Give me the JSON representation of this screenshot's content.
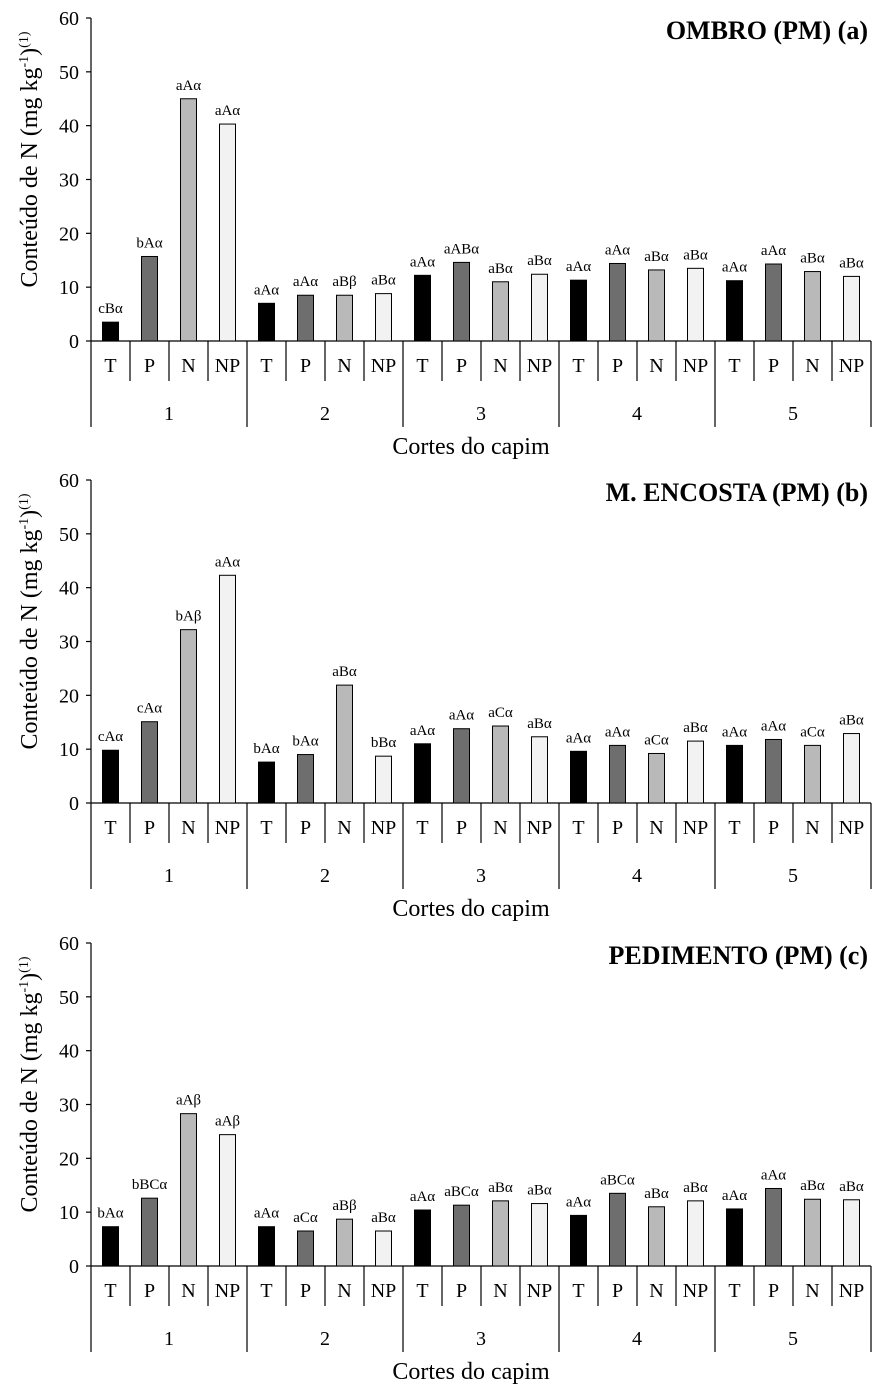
{
  "chart_data": [
    {
      "type": "bar",
      "title": "OMBRO (PM) (a)",
      "xlabel": "Cortes do capim",
      "ylabel": "Conteúdo de N (mg kg",
      "ylabel_sup1": "-1",
      "ylabel_mid": ")",
      "ylabel_sup2": "(1)",
      "ylim": [
        0,
        60
      ],
      "yticks": [
        "0",
        "10",
        "20",
        "30",
        "40",
        "50",
        "60"
      ],
      "groups": [
        "1",
        "2",
        "3",
        "4",
        "5"
      ],
      "categories": [
        "T",
        "P",
        "N",
        "NP"
      ],
      "colors": [
        "#000000",
        "#6e6e6e",
        "#b9b9b9",
        "#f2f2f2"
      ],
      "values": [
        [
          3.5,
          15.7,
          45.0,
          40.3
        ],
        [
          7.0,
          8.5,
          8.5,
          8.8
        ],
        [
          12.2,
          14.6,
          11.0,
          12.4
        ],
        [
          11.3,
          14.4,
          13.2,
          13.5
        ],
        [
          11.2,
          14.3,
          12.9,
          12.0
        ]
      ],
      "labels": [
        [
          "cBα",
          "bAα",
          "aAα",
          "aAα"
        ],
        [
          "aAα",
          "aAα",
          "aBβ",
          "aBα"
        ],
        [
          "aAα",
          "aABα",
          "aBα",
          "aBα"
        ],
        [
          "aAα",
          "aAα",
          "aBα",
          "aBα"
        ],
        [
          "aAα",
          "aAα",
          "aBα",
          "aBα"
        ]
      ]
    },
    {
      "type": "bar",
      "title": "M. ENCOSTA (PM) (b)",
      "xlabel": "Cortes do capim",
      "ylabel": "Conteúdo de N (mg kg",
      "ylabel_sup1": "-1",
      "ylabel_mid": ")",
      "ylabel_sup2": "(1)",
      "ylim": [
        0,
        60
      ],
      "yticks": [
        "0",
        "10",
        "20",
        "30",
        "40",
        "50",
        "60"
      ],
      "groups": [
        "1",
        "2",
        "3",
        "4",
        "5"
      ],
      "categories": [
        "T",
        "P",
        "N",
        "NP"
      ],
      "colors": [
        "#000000",
        "#6e6e6e",
        "#b9b9b9",
        "#f2f2f2"
      ],
      "values": [
        [
          9.8,
          15.1,
          32.2,
          42.3
        ],
        [
          7.6,
          9.0,
          21.9,
          8.7
        ],
        [
          11.0,
          13.8,
          14.3,
          12.3
        ],
        [
          9.6,
          10.7,
          9.2,
          11.5
        ],
        [
          10.7,
          11.8,
          10.7,
          12.9
        ]
      ],
      "labels": [
        [
          "cAα",
          "cAα",
          "bAβ",
          "aAα"
        ],
        [
          "bAα",
          "bAα",
          "aBα",
          "bBα"
        ],
        [
          "aAα",
          "aAα",
          "aCα",
          "aBα"
        ],
        [
          "aAα",
          "aAα",
          "aCα",
          "aBα"
        ],
        [
          "aAα",
          "aAα",
          "aCα",
          "aBα"
        ]
      ]
    },
    {
      "type": "bar",
      "title": "PEDIMENTO (PM) (c)",
      "xlabel": "Cortes do capim",
      "ylabel": "Conteúdo de N (mg kg",
      "ylabel_sup1": "-1",
      "ylabel_mid": ")",
      "ylabel_sup2": "(1)",
      "ylim": [
        0,
        60
      ],
      "yticks": [
        "0",
        "10",
        "20",
        "30",
        "40",
        "50",
        "60"
      ],
      "groups": [
        "1",
        "2",
        "3",
        "4",
        "5"
      ],
      "categories": [
        "T",
        "P",
        "N",
        "NP"
      ],
      "colors": [
        "#000000",
        "#6e6e6e",
        "#b9b9b9",
        "#f2f2f2"
      ],
      "values": [
        [
          7.3,
          12.6,
          28.3,
          24.4
        ],
        [
          7.3,
          6.5,
          8.7,
          6.5
        ],
        [
          10.4,
          11.3,
          12.1,
          11.6
        ],
        [
          9.4,
          13.5,
          11.0,
          12.1
        ],
        [
          10.6,
          14.4,
          12.4,
          12.3
        ]
      ],
      "labels": [
        [
          "bAα",
          "bBCα",
          "aAβ",
          "aAβ"
        ],
        [
          "aAα",
          "aCα",
          "aBβ",
          "aBα"
        ],
        [
          "aAα",
          "aBCα",
          "aBα",
          "aBα"
        ],
        [
          "aAα",
          "aBCα",
          "aBα",
          "aBα"
        ],
        [
          "aAα",
          "aAα",
          "aBα",
          "aBα"
        ]
      ]
    }
  ]
}
